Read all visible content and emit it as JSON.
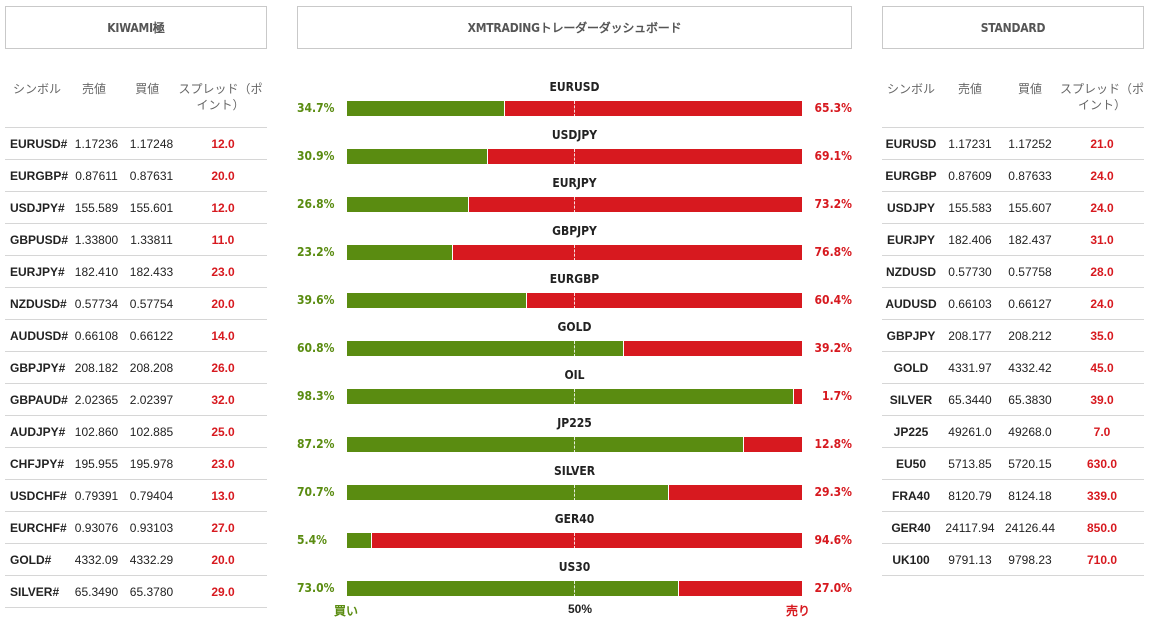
{
  "tabs": {
    "left": "KIWAMI極",
    "middle": "XMTRADINGトレーダーダッシュボード",
    "right": "STANDARD"
  },
  "table_headers": {
    "symbol": "シンボル",
    "bid": "売値",
    "ask": "買値",
    "spread_left": "スプレッド（ポイント）",
    "spread_right": "スプレッド（ポイント）"
  },
  "kiwami_rows": [
    [
      "EURUSD#",
      "1.17236",
      "1.17248",
      "12.0"
    ],
    [
      "EURGBP#",
      "0.87611",
      "0.87631",
      "20.0"
    ],
    [
      "USDJPY#",
      "155.589",
      "155.601",
      "12.0"
    ],
    [
      "GBPUSD#",
      "1.33800",
      "1.33811",
      "11.0"
    ],
    [
      "EURJPY#",
      "182.410",
      "182.433",
      "23.0"
    ],
    [
      "NZDUSD#",
      "0.57734",
      "0.57754",
      "20.0"
    ],
    [
      "AUDUSD#",
      "0.66108",
      "0.66122",
      "14.0"
    ],
    [
      "GBPJPY#",
      "208.182",
      "208.208",
      "26.0"
    ],
    [
      "GBPAUD#",
      "2.02365",
      "2.02397",
      "32.0"
    ],
    [
      "AUDJPY#",
      "102.860",
      "102.885",
      "25.0"
    ],
    [
      "CHFJPY#",
      "195.955",
      "195.978",
      "23.0"
    ],
    [
      "USDCHF#",
      "0.79391",
      "0.79404",
      "13.0"
    ],
    [
      "EURCHF#",
      "0.93076",
      "0.93103",
      "27.0"
    ],
    [
      "GOLD#",
      "4332.09",
      "4332.29",
      "20.0"
    ],
    [
      "SILVER#",
      "65.3490",
      "65.3780",
      "29.0"
    ]
  ],
  "standard_rows": [
    [
      "EURUSD",
      "1.17231",
      "1.17252",
      "21.0"
    ],
    [
      "EURGBP",
      "0.87609",
      "0.87633",
      "24.0"
    ],
    [
      "USDJPY",
      "155.583",
      "155.607",
      "24.0"
    ],
    [
      "EURJPY",
      "182.406",
      "182.437",
      "31.0"
    ],
    [
      "NZDUSD",
      "0.57730",
      "0.57758",
      "28.0"
    ],
    [
      "AUDUSD",
      "0.66103",
      "0.66127",
      "24.0"
    ],
    [
      "GBPJPY",
      "208.177",
      "208.212",
      "35.0"
    ],
    [
      "GOLD",
      "4331.97",
      "4332.42",
      "45.0"
    ],
    [
      "SILVER",
      "65.3440",
      "65.3830",
      "39.0"
    ],
    [
      "JP225",
      "49261.0",
      "49268.0",
      "7.0"
    ],
    [
      "EU50",
      "5713.85",
      "5720.15",
      "630.0"
    ],
    [
      "FRA40",
      "8120.79",
      "8124.18",
      "339.0"
    ],
    [
      "GER40",
      "24117.94",
      "24126.44",
      "850.0"
    ],
    [
      "UK100",
      "9791.13",
      "9798.23",
      "710.0"
    ]
  ],
  "dashboard": {
    "items": [
      {
        "symbol": "EURUSD",
        "buy": "34.7%",
        "sell": "65.3%",
        "buy_value": 34.7
      },
      {
        "symbol": "USDJPY",
        "buy": "30.9%",
        "sell": "69.1%",
        "buy_value": 30.9
      },
      {
        "symbol": "EURJPY",
        "buy": "26.8%",
        "sell": "73.2%",
        "buy_value": 26.8
      },
      {
        "symbol": "GBPJPY",
        "buy": "23.2%",
        "sell": "76.8%",
        "buy_value": 23.2
      },
      {
        "symbol": "EURGBP",
        "buy": "39.6%",
        "sell": "60.4%",
        "buy_value": 39.6
      },
      {
        "symbol": "GOLD",
        "buy": "60.8%",
        "sell": "39.2%",
        "buy_value": 60.8
      },
      {
        "symbol": "OIL",
        "buy": "98.3%",
        "sell": "1.7%",
        "buy_value": 98.3
      },
      {
        "symbol": "JP225",
        "buy": "87.2%",
        "sell": "12.8%",
        "buy_value": 87.2
      },
      {
        "symbol": "SILVER",
        "buy": "70.7%",
        "sell": "29.3%",
        "buy_value": 70.7
      },
      {
        "symbol": "GER40",
        "buy": "5.4%",
        "sell": "94.6%",
        "buy_value": 5.4
      },
      {
        "symbol": "US30",
        "buy": "73.0%",
        "sell": "27.0%",
        "buy_value": 73.0
      }
    ],
    "buy_label": "買い",
    "mid_label": "50%",
    "sell_label": "売り"
  },
  "colors": {
    "buy": "#5a8c11",
    "sell": "#d7191f"
  }
}
